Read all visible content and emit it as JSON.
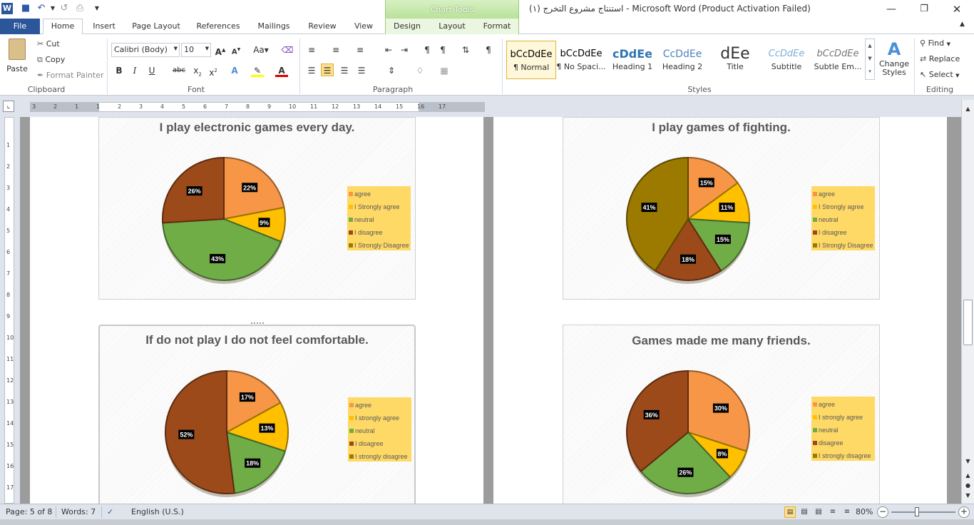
{
  "window": {
    "title": "(استنتاج مشروع التخرج (١  -  Microsoft Word (Product Activation Failed)",
    "chart_tools_label": "Chart Tools"
  },
  "tabs": {
    "file": "File",
    "home": "Home",
    "insert": "Insert",
    "page_layout": "Page Layout",
    "references": "References",
    "mailings": "Mailings",
    "review": "Review",
    "view": "View",
    "design": "Design",
    "layout": "Layout",
    "format": "Format"
  },
  "clipboard": {
    "paste": "Paste",
    "cut": "Cut",
    "copy": "Copy",
    "format_painter": "Format Painter",
    "label": "Clipboard"
  },
  "font": {
    "family": "Calibri (Body)",
    "size": "10",
    "label": "Font"
  },
  "paragraph": {
    "label": "Paragraph"
  },
  "styles": {
    "label": "Styles",
    "items": [
      {
        "sample": "bCcDdEe",
        "name": "¶ Normal"
      },
      {
        "sample": "bCcDdEe",
        "name": "¶ No Spaci..."
      },
      {
        "sample": "cDdEe",
        "name": "Heading 1"
      },
      {
        "sample": "CcDdEe",
        "name": "Heading 2"
      },
      {
        "sample": "dEe",
        "name": "Title"
      },
      {
        "sample": "CcDdEe",
        "name": "Subtitle"
      },
      {
        "sample": "bCcDdEe",
        "name": "Subtle Em..."
      }
    ],
    "change_styles": "Change Styles"
  },
  "editing": {
    "find": "Find",
    "replace": "Replace",
    "select": "Select",
    "label": "Editing"
  },
  "ruler": {
    "ticks": [
      "3",
      "2",
      "1",
      "1",
      "2",
      "3",
      "4",
      "5",
      "6",
      "7",
      "8",
      "9",
      "10",
      "11",
      "12",
      "13",
      "14",
      "15",
      "16",
      "17"
    ]
  },
  "vruler": {
    "ticks": [
      "1",
      "2",
      "3",
      "4",
      "5",
      "6",
      "7",
      "8",
      "9",
      "10",
      "11",
      "12",
      "13",
      "14",
      "15",
      "16",
      "17"
    ]
  },
  "status": {
    "page": "Page: 5 of 8",
    "words": "Words: 7",
    "language": "English (U.S.)",
    "zoom": "80%"
  },
  "colors": {
    "agree": "#f79646",
    "strongly_agree": "#ffc000",
    "neutral": "#70ad47",
    "disagree": "#9c4a1a",
    "strongly_disagree": "#9c7a00",
    "legend_bg": "#ffd966"
  },
  "charts": [
    {
      "title": "I play electronic games every day.",
      "legend": [
        "agree",
        "I Strongly agree",
        "neutral",
        "I disagree",
        "I Strongly Disagree"
      ],
      "chart_data": {
        "type": "pie",
        "categories": [
          "agree",
          "I Strongly agree",
          "neutral",
          "I disagree",
          "I Strongly Disagree"
        ],
        "values": [
          22,
          9,
          43,
          26,
          0
        ],
        "labels": [
          "22%",
          "9%",
          "43%",
          "26%",
          ""
        ]
      }
    },
    {
      "title": "I play games of fighting.",
      "legend": [
        "agree",
        "I Strongly agree",
        "neutral",
        "I disagree",
        "I Strongly Disagree"
      ],
      "chart_data": {
        "type": "pie",
        "categories": [
          "agree",
          "I Strongly agree",
          "neutral",
          "I disagree",
          "I Strongly Disagree"
        ],
        "values": [
          15,
          11,
          15,
          18,
          41
        ],
        "labels": [
          "15%",
          "11%",
          "15%",
          "18%",
          "41%"
        ]
      }
    },
    {
      "title": "If do not play I do not feel comfortable.",
      "legend": [
        "agree",
        "I strongly agree",
        "neutral",
        "I disagree",
        "I strongly disagree"
      ],
      "chart_data": {
        "type": "pie",
        "categories": [
          "agree",
          "I strongly agree",
          "neutral",
          "I disagree",
          "I strongly disagree"
        ],
        "values": [
          17,
          13,
          18,
          52,
          0
        ],
        "labels": [
          "17%",
          "13%",
          "18%",
          "52%",
          ""
        ]
      }
    },
    {
      "title": "Games made me many friends.",
      "legend": [
        "agree",
        "I strongly agree",
        "neutral",
        "disagree",
        "I strongly disagree"
      ],
      "chart_data": {
        "type": "pie",
        "categories": [
          "agree",
          "I strongly agree",
          "neutral",
          "disagree",
          "I strongly disagree"
        ],
        "values": [
          30,
          8,
          26,
          36,
          0
        ],
        "labels": [
          "30%",
          "8%",
          "26%",
          "36%",
          ""
        ]
      }
    }
  ]
}
